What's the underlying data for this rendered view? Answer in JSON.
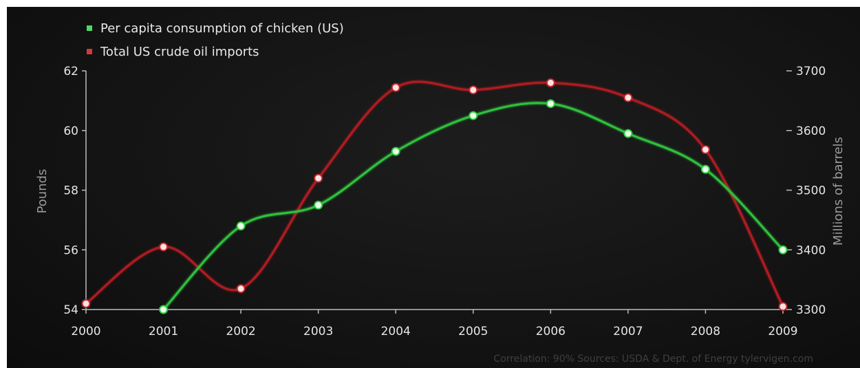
{
  "chart_data": {
    "type": "line",
    "x": [
      "2000",
      "2001",
      "2002",
      "2003",
      "2004",
      "2005",
      "2006",
      "2007",
      "2008",
      "2009"
    ],
    "series": [
      {
        "name": "Per capita consumption of chicken (US)",
        "axis": "left",
        "color": "#2ecc40",
        "values": [
          null,
          54.0,
          56.8,
          57.5,
          59.3,
          60.5,
          60.9,
          59.9,
          58.7,
          56.0
        ]
      },
      {
        "name": "Total US crude oil imports",
        "axis": "right",
        "color": "#c0282c",
        "values": [
          3310,
          3405,
          3335,
          3520,
          3672,
          3668,
          3680,
          3655,
          3568,
          3305
        ]
      }
    ],
    "ylabel_left": "Pounds",
    "ylabel_right": "Millions of barrels",
    "ylim_left": [
      54,
      62
    ],
    "yticks_left": [
      "54",
      "56",
      "58",
      "60",
      "62"
    ],
    "ylim_right": [
      3300,
      3700
    ],
    "yticks_right": [
      "3300",
      "3400",
      "3500",
      "3600",
      "3700"
    ],
    "grid": false,
    "legend_position": "top-left",
    "footer": "Correlation: 90%    Sources: USDA & Dept. of Energy    tylervigen.com"
  }
}
